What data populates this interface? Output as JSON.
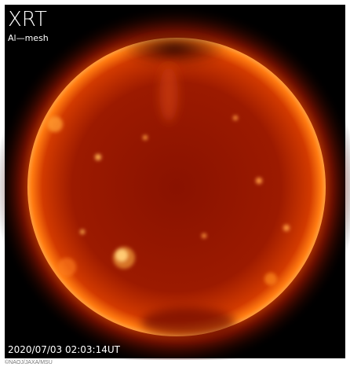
{
  "image": {
    "instrument": "XRT",
    "filter": "Al—mesh",
    "timestamp": "2020/07/03 02:03:14UT"
  },
  "credit": "©NAOJ/JAXA/MSU"
}
